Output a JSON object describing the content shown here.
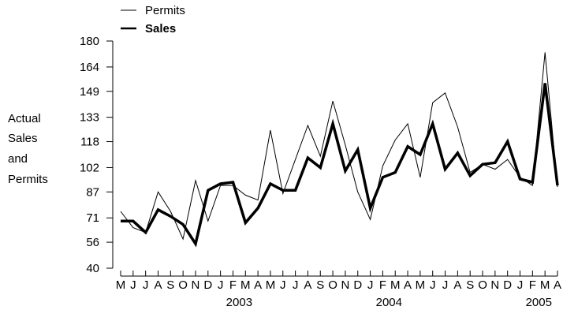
{
  "chart_data": {
    "type": "line",
    "title": "",
    "xlabel": "",
    "ylabel_lines": [
      "Actual",
      "Sales",
      "and",
      "Permits"
    ],
    "ylim": [
      40,
      180
    ],
    "yticks": [
      "40",
      "56",
      "71",
      "87",
      "102",
      "118",
      "133",
      "149",
      "164",
      "180"
    ],
    "month_labels": [
      "M",
      "J",
      "J",
      "A",
      "S",
      "O",
      "N",
      "D",
      "J",
      "F",
      "M",
      "A",
      "M",
      "J",
      "J",
      "A",
      "S",
      "O",
      "N",
      "D",
      "J",
      "F",
      "M",
      "A",
      "M",
      "J",
      "J",
      "A",
      "S",
      "O",
      "N",
      "D",
      "J",
      "F",
      "M",
      "A"
    ],
    "year_labels": [
      {
        "label": "2003",
        "index": 9
      },
      {
        "label": "2004",
        "index": 21
      },
      {
        "label": "2005",
        "index": 33
      }
    ],
    "legend_position": "top-left",
    "series": [
      {
        "name": "Permits",
        "style": "thin",
        "values": [
          75,
          65,
          62,
          87,
          75,
          58,
          94,
          69,
          91,
          91,
          85,
          82,
          125,
          86,
          107,
          128,
          109,
          143,
          116,
          87,
          70,
          103,
          119,
          129,
          96,
          142,
          148,
          127,
          99,
          104,
          101,
          107,
          96,
          91,
          173,
          90
        ]
      },
      {
        "name": "Sales",
        "style": "bold",
        "values": [
          69,
          69,
          62,
          76,
          72,
          67,
          55,
          88,
          92,
          93,
          68,
          77,
          92,
          88,
          88,
          108,
          102,
          129,
          100,
          113,
          77,
          96,
          99,
          115,
          110,
          129,
          101,
          111,
          97,
          104,
          105,
          118,
          95,
          93,
          154,
          91
        ]
      }
    ]
  }
}
